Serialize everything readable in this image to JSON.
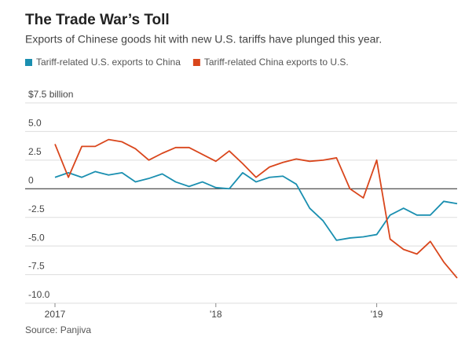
{
  "chart_data": {
    "type": "line",
    "title": "The Trade War’s Toll",
    "subtitle": "Exports of Chinese goods hit with new U.S. tariffs have plunged this year.",
    "source": "Source: Panjiva",
    "categories": [
      "2017",
      null,
      null,
      null,
      null,
      null,
      null,
      null,
      null,
      null,
      null,
      null,
      "'18",
      null,
      null,
      null,
      null,
      null,
      null,
      null,
      null,
      null,
      null,
      null,
      "'19",
      null,
      null,
      null,
      null,
      null,
      null
    ],
    "series": [
      {
        "name": "Tariff-related U.S. exports to China",
        "color": "#1a8fb0",
        "values": [
          1.0,
          1.4,
          1.0,
          1.5,
          1.2,
          1.4,
          0.6,
          0.9,
          1.3,
          0.6,
          0.2,
          0.6,
          0.1,
          0.0,
          1.4,
          0.6,
          1.0,
          1.1,
          0.4,
          -1.7,
          -2.8,
          -4.5,
          -4.3,
          -4.2,
          -4.0,
          -2.3,
          -1.7,
          -2.3,
          -2.3,
          -1.1,
          -1.3
        ]
      },
      {
        "name": "Tariff-related China exports to U.S.",
        "color": "#d9461c",
        "values": [
          3.9,
          1.0,
          3.7,
          3.7,
          4.3,
          4.1,
          3.5,
          2.5,
          3.1,
          3.6,
          3.6,
          3.0,
          2.4,
          3.3,
          2.2,
          1.0,
          1.9,
          2.3,
          2.6,
          2.4,
          2.5,
          2.7,
          0.0,
          -0.8,
          2.5,
          -4.4,
          -5.3,
          -5.7,
          -4.6,
          -6.4,
          -7.8
        ]
      }
    ],
    "ylim": [
      -10,
      7.5
    ],
    "yticks": [
      {
        "value": -10,
        "label": "-10.0"
      },
      -7.5,
      {
        "value": -5,
        "label": "-5.0"
      },
      -2.5,
      0,
      2.5,
      {
        "value": 5,
        "label": "5.0"
      },
      {
        "value": 7.5,
        "label": "$7.5 billion"
      }
    ],
    "grid": true
  }
}
